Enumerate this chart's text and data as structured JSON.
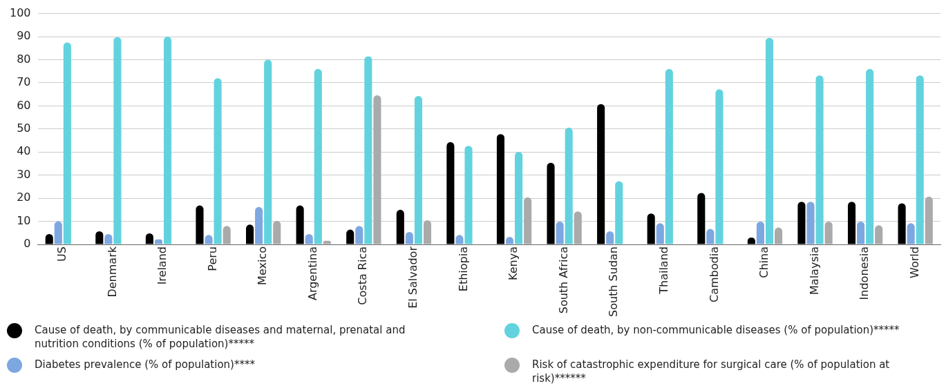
{
  "chart_data": {
    "type": "bar",
    "categories": [
      "US",
      "Denmark",
      "Ireland",
      "Peru",
      "Mexico",
      "Argentina",
      "Costa Rica",
      "El Salvador",
      "Ethiopia",
      "Kenya",
      "South Africa",
      "South Sudan",
      "Thailand",
      "Cambodia",
      "China",
      "Malaysia",
      "Indonesia",
      "World"
    ],
    "series": [
      {
        "name": "Cause of death, by communicable diseases and maternal, prenatal and nutrition conditions (% of population)*****",
        "color": "#000000",
        "values": [
          4.5,
          5.7,
          4.8,
          16.9,
          8.6,
          16.9,
          6.4,
          15,
          44.3,
          47.8,
          35.4,
          60.8,
          13.4,
          22.3,
          2.9,
          18.5,
          18.5,
          17.8
        ]
      },
      {
        "name": "Diabetes prevalence (% of population)****",
        "color": "#7da7e0",
        "values": [
          10,
          4.5,
          2.2,
          4.1,
          16.2,
          4.5,
          8,
          5.4,
          4.1,
          3.2,
          9.9,
          5.7,
          9.2,
          6.7,
          9.9,
          18.5,
          9.9,
          9.2
        ]
      },
      {
        "name": "Cause of death, by non-communicable diseases (% of population)*****",
        "color": "#62d3de",
        "values": [
          87.5,
          89.8,
          90,
          72,
          80,
          76,
          81.5,
          64.3,
          42.7,
          40.1,
          50.6,
          27.4,
          76,
          67.2,
          89.5,
          73.2,
          76,
          73.2
        ]
      },
      {
        "name": "Risk of catastrophic expenditure for surgical care (% of population at risk)******",
        "color": "#aaaaaa",
        "values": [
          null,
          null,
          null,
          8,
          10.2,
          1.6,
          64.6,
          10.5,
          0,
          20.4,
          14.3,
          0,
          null,
          0,
          7.3,
          9.9,
          8.3,
          20.7
        ]
      }
    ],
    "ylim": [
      0,
      100
    ],
    "yticks": [
      0,
      10,
      20,
      30,
      40,
      50,
      60,
      70,
      80,
      90,
      100
    ],
    "grid": "y",
    "legend": "bottom"
  }
}
